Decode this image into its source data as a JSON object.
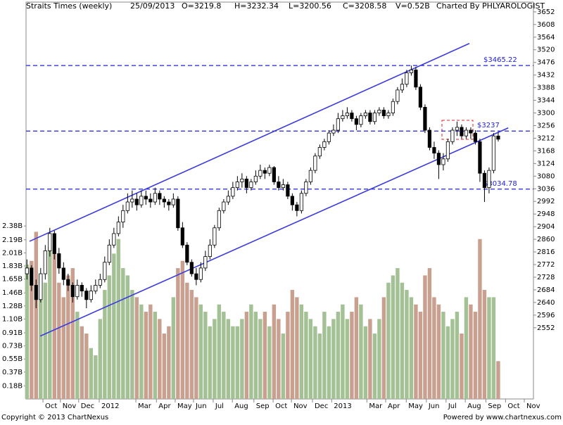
{
  "chart_data": {
    "type": "candlestick",
    "title": "Straits Times (weekly)",
    "header": [
      "25/09/2013",
      "O=3219.8",
      "H=3232.34",
      "L=3200.56",
      "C=3208.58",
      "V=0.52B",
      "Charted By PHLYAROLOGIST"
    ],
    "footer_left": "Copyright © 2013 ChartNexus",
    "footer_right": "Powered by www.chartnexus.com",
    "xlim": [
      -0.2,
      110.7
    ],
    "xticks": [
      {
        "value": 3.5,
        "label": "Oct"
      },
      {
        "value": 7.3,
        "label": "Nov"
      },
      {
        "value": 11.3,
        "label": "Dec"
      },
      {
        "value": 15.8,
        "label": "2012"
      },
      {
        "value": 23.8,
        "label": "Mar"
      },
      {
        "value": 28.3,
        "label": "Apr"
      },
      {
        "value": 32.4,
        "label": "May"
      },
      {
        "value": 36.4,
        "label": "Jun"
      },
      {
        "value": 40.7,
        "label": "Jul"
      },
      {
        "value": 44.9,
        "label": "Aug"
      },
      {
        "value": 49.6,
        "label": "Sep"
      },
      {
        "value": 53.8,
        "label": "Oct"
      },
      {
        "value": 57.8,
        "label": "Nov"
      },
      {
        "value": 62.4,
        "label": "Dec"
      },
      {
        "value": 66.6,
        "label": "2013"
      },
      {
        "value": 74.3,
        "label": "Mar"
      },
      {
        "value": 78.4,
        "label": "Apr"
      },
      {
        "value": 82.9,
        "label": "May"
      },
      {
        "value": 87.3,
        "label": "Jun"
      },
      {
        "value": 91.6,
        "label": "Jul"
      },
      {
        "value": 95.8,
        "label": "Aug"
      },
      {
        "value": 100.3,
        "label": "Sep"
      },
      {
        "value": 104.6,
        "label": "Oct"
      },
      {
        "value": 108.7,
        "label": "Nov"
      }
    ],
    "ylim": [
      2304,
      3686
    ],
    "yticks": [
      2552,
      2596,
      2640,
      2684,
      2728,
      2772,
      2816,
      2860,
      2904,
      2948,
      2992,
      3036,
      3080,
      3124,
      3168,
      3212,
      3256,
      3300,
      3344,
      3388,
      3432,
      3476,
      3520,
      3564,
      3608,
      3652
    ],
    "y2lim": [
      0,
      5.46
    ],
    "y2ticks": [
      {
        "value": 0.18,
        "label": "0.18B"
      },
      {
        "value": 0.37,
        "label": "0.37B"
      },
      {
        "value": 0.55,
        "label": "0.55B"
      },
      {
        "value": 0.73,
        "label": "0.73B"
      },
      {
        "value": 0.91,
        "label": "0.91B"
      },
      {
        "value": 1.1,
        "label": "1.10B"
      },
      {
        "value": 1.28,
        "label": "1.28B"
      },
      {
        "value": 1.46,
        "label": "1.46B"
      },
      {
        "value": 1.65,
        "label": "1.65B"
      },
      {
        "value": 1.83,
        "label": "1.83B"
      },
      {
        "value": 2.01,
        "label": "2.01B"
      },
      {
        "value": 2.19,
        "label": "2.19B"
      },
      {
        "value": 2.38,
        "label": "2.38B"
      }
    ],
    "up_color": "#ffffff",
    "down_color": "#000000",
    "volume_up_color": "#a3c194",
    "volume_down_color": "#c9a090",
    "hline_color": "#2020e0",
    "trend_color": "#3b3bdf",
    "hlines": [
      {
        "value": 3465.22,
        "label": "$3465.22"
      },
      {
        "value": 3237,
        "label": "$3237"
      },
      {
        "value": 3034.78,
        "label": "$3034.78"
      }
    ],
    "trendlines": [
      [
        [
          0.57,
          2853
        ],
        [
          96.7,
          3542
        ]
      ],
      [
        [
          2.9,
          2523
        ],
        [
          105.2,
          3248
        ]
      ]
    ],
    "ohlc": [
      [
        2740,
        2790,
        2720,
        2760
      ],
      [
        2760,
        2770,
        2680,
        2700
      ],
      [
        2700,
        2720,
        2620,
        2650
      ],
      [
        2650,
        2760,
        2640,
        2740
      ],
      [
        2740,
        2840,
        2720,
        2820
      ],
      [
        2820,
        2900,
        2800,
        2880
      ],
      [
        2880,
        2890,
        2790,
        2810
      ],
      [
        2810,
        2830,
        2740,
        2760
      ],
      [
        2760,
        2780,
        2700,
        2720
      ],
      [
        2720,
        2740,
        2680,
        2700
      ],
      [
        2700,
        2710,
        2640,
        2660
      ],
      [
        2660,
        2720,
        2650,
        2700
      ],
      [
        2700,
        2710,
        2660,
        2680
      ],
      [
        2680,
        2690,
        2620,
        2650
      ],
      [
        2650,
        2700,
        2640,
        2680
      ],
      [
        2680,
        2720,
        2670,
        2700
      ],
      [
        2700,
        2740,
        2690,
        2720
      ],
      [
        2720,
        2800,
        2710,
        2780
      ],
      [
        2780,
        2860,
        2770,
        2840
      ],
      [
        2840,
        2900,
        2830,
        2880
      ],
      [
        2880,
        2940,
        2870,
        2920
      ],
      [
        2920,
        2980,
        2900,
        2960
      ],
      [
        2960,
        3020,
        2950,
        2990
      ],
      [
        2990,
        3030,
        2970,
        3000
      ],
      [
        3000,
        3020,
        2960,
        2980
      ],
      [
        2980,
        3030,
        2970,
        3010
      ],
      [
        3010,
        3030,
        2980,
        3000
      ],
      [
        3000,
        3020,
        2970,
        2990
      ],
      [
        2990,
        3040,
        2980,
        3020
      ],
      [
        3020,
        3030,
        2980,
        3000
      ],
      [
        3000,
        3010,
        2970,
        2990
      ],
      [
        2990,
        3000,
        2960,
        2980
      ],
      [
        2980,
        3020,
        2970,
        3000
      ],
      [
        3000,
        3010,
        2890,
        2900
      ],
      [
        2900,
        2920,
        2830,
        2840
      ],
      [
        2840,
        2850,
        2770,
        2780
      ],
      [
        2780,
        2790,
        2730,
        2740
      ],
      [
        2740,
        2760,
        2700,
        2720
      ],
      [
        2720,
        2780,
        2710,
        2760
      ],
      [
        2760,
        2820,
        2750,
        2800
      ],
      [
        2800,
        2860,
        2790,
        2840
      ],
      [
        2840,
        2910,
        2830,
        2900
      ],
      [
        2900,
        2970,
        2890,
        2960
      ],
      [
        2960,
        3000,
        2950,
        2990
      ],
      [
        2990,
        3030,
        2980,
        3010
      ],
      [
        3010,
        3060,
        3000,
        3040
      ],
      [
        3040,
        3080,
        3030,
        3060
      ],
      [
        3060,
        3090,
        3040,
        3070
      ],
      [
        3070,
        3080,
        3020,
        3040
      ],
      [
        3040,
        3070,
        3030,
        3060
      ],
      [
        3060,
        3100,
        3050,
        3080
      ],
      [
        3080,
        3120,
        3070,
        3100
      ],
      [
        3100,
        3110,
        3070,
        3090
      ],
      [
        3090,
        3120,
        3080,
        3110
      ],
      [
        3110,
        3115,
        3050,
        3060
      ],
      [
        3060,
        3080,
        3030,
        3040
      ],
      [
        3040,
        3070,
        3030,
        3050
      ],
      [
        3050,
        3060,
        3000,
        3010
      ],
      [
        3010,
        3020,
        2960,
        2980
      ],
      [
        2980,
        2990,
        2940,
        2960
      ],
      [
        2960,
        3030,
        2950,
        3020
      ],
      [
        3020,
        3070,
        3010,
        3060
      ],
      [
        3060,
        3110,
        3050,
        3100
      ],
      [
        3100,
        3160,
        3090,
        3150
      ],
      [
        3150,
        3190,
        3140,
        3180
      ],
      [
        3180,
        3210,
        3170,
        3200
      ],
      [
        3200,
        3240,
        3190,
        3230
      ],
      [
        3230,
        3260,
        3220,
        3240
      ],
      [
        3240,
        3300,
        3230,
        3280
      ],
      [
        3280,
        3310,
        3270,
        3290
      ],
      [
        3290,
        3320,
        3280,
        3300
      ],
      [
        3300,
        3310,
        3270,
        3280
      ],
      [
        3280,
        3290,
        3240,
        3260
      ],
      [
        3260,
        3300,
        3250,
        3290
      ],
      [
        3290,
        3310,
        3280,
        3300
      ],
      [
        3300,
        3310,
        3260,
        3270
      ],
      [
        3270,
        3310,
        3260,
        3300
      ],
      [
        3300,
        3320,
        3290,
        3310
      ],
      [
        3310,
        3320,
        3280,
        3290
      ],
      [
        3290,
        3310,
        3280,
        3300
      ],
      [
        3300,
        3350,
        3290,
        3340
      ],
      [
        3340,
        3390,
        3330,
        3380
      ],
      [
        3380,
        3420,
        3370,
        3400
      ],
      [
        3400,
        3450,
        3390,
        3440
      ],
      [
        3440,
        3465,
        3430,
        3450
      ],
      [
        3450,
        3460,
        3380,
        3390
      ],
      [
        3390,
        3400,
        3310,
        3320
      ],
      [
        3320,
        3330,
        3230,
        3240
      ],
      [
        3240,
        3250,
        3170,
        3180
      ],
      [
        3180,
        3200,
        3140,
        3160
      ],
      [
        3160,
        3170,
        3070,
        3120
      ],
      [
        3120,
        3160,
        3100,
        3140
      ],
      [
        3140,
        3210,
        3130,
        3200
      ],
      [
        3200,
        3250,
        3190,
        3240
      ],
      [
        3240,
        3270,
        3220,
        3250
      ],
      [
        3250,
        3260,
        3210,
        3220
      ],
      [
        3220,
        3250,
        3210,
        3240
      ],
      [
        3240,
        3250,
        3210,
        3230
      ],
      [
        3230,
        3240,
        3190,
        3200
      ],
      [
        3200,
        3210,
        3060,
        3090
      ],
      [
        3090,
        3100,
        2990,
        3040
      ],
      [
        3040,
        3110,
        3020,
        3100
      ],
      [
        3100,
        3230,
        3090,
        3220
      ],
      [
        3219.8,
        3232.34,
        3200.56,
        3208.58
      ]
    ],
    "volume": [
      1.85,
      1.9,
      2.3,
      1.7,
      1.6,
      2.1,
      2.05,
      1.6,
      1.4,
      1.7,
      1.8,
      1.2,
      1.0,
      0.9,
      0.7,
      0.6,
      1.1,
      1.5,
      1.7,
      2.0,
      2.2,
      1.8,
      1.7,
      1.5,
      1.4,
      1.3,
      1.2,
      1.3,
      1.2,
      1.1,
      0.9,
      1.0,
      1.4,
      1.8,
      1.9,
      1.6,
      1.5,
      1.4,
      1.3,
      1.2,
      1.0,
      1.1,
      1.3,
      1.2,
      1.1,
      1.0,
      1.0,
      1.1,
      1.2,
      1.3,
      1.2,
      1.1,
      1.2,
      1.0,
      1.3,
      1.1,
      0.9,
      1.2,
      1.5,
      1.4,
      1.3,
      1.2,
      1.1,
      1.0,
      0.9,
      1.2,
      1.0,
      1.1,
      1.2,
      1.3,
      1.1,
      1.2,
      1.4,
      1.3,
      1.0,
      1.1,
      0.9,
      1.1,
      1.4,
      1.6,
      1.7,
      1.8,
      1.6,
      1.5,
      1.4,
      1.3,
      1.2,
      1.7,
      1.8,
      1.4,
      1.3,
      1.2,
      1.0,
      1.1,
      1.2,
      0.9,
      1.4,
      1.3,
      1.2,
      2.2,
      1.5,
      1.4,
      1.4,
      0.52
    ]
  }
}
